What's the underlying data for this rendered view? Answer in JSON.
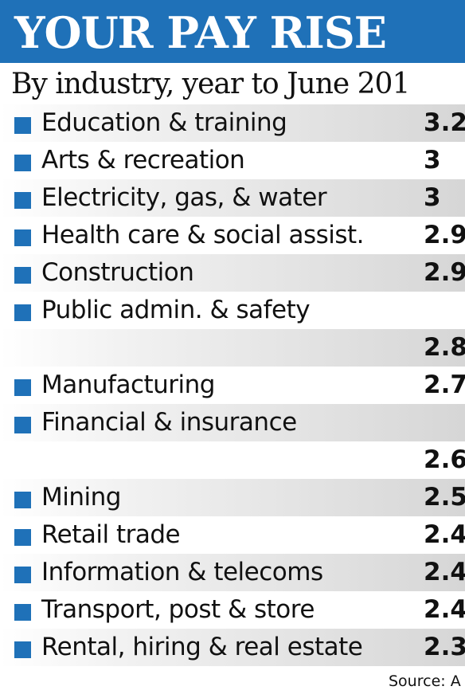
{
  "header": {
    "title": "YOUR PAY RISE"
  },
  "chart_data": {
    "type": "table",
    "title": "YOUR PAY RISE",
    "subtitle": "By industry, year to June 201",
    "source": "Source: A",
    "colors": {
      "accent": "#1f71b8"
    },
    "rows": [
      {
        "label": "Education & training",
        "value_text": "3.2"
      },
      {
        "label": "Arts & recreation",
        "value_text": "3"
      },
      {
        "label": "Electricity, gas, & water",
        "value_text": "3"
      },
      {
        "label": "Health care & social assist.",
        "value_text": "2.9"
      },
      {
        "label": "Construction",
        "value_text": "2.9"
      },
      {
        "label": "Public admin. & safety",
        "value_text": ""
      },
      {
        "label": "",
        "value_text": "2.8"
      },
      {
        "label": "Manufacturing",
        "value_text": "2.7"
      },
      {
        "label": "Financial & insurance",
        "value_text": ""
      },
      {
        "label": "",
        "value_text": "2.6"
      },
      {
        "label": "Mining",
        "value_text": "2.5"
      },
      {
        "label": "Retail trade",
        "value_text": "2.4"
      },
      {
        "label": "Information & telecoms",
        "value_text": "2.4"
      },
      {
        "label": "Transport, post & store",
        "value_text": "2.4"
      },
      {
        "label": "Rental, hiring & real estate",
        "value_text": "2.3"
      }
    ]
  }
}
